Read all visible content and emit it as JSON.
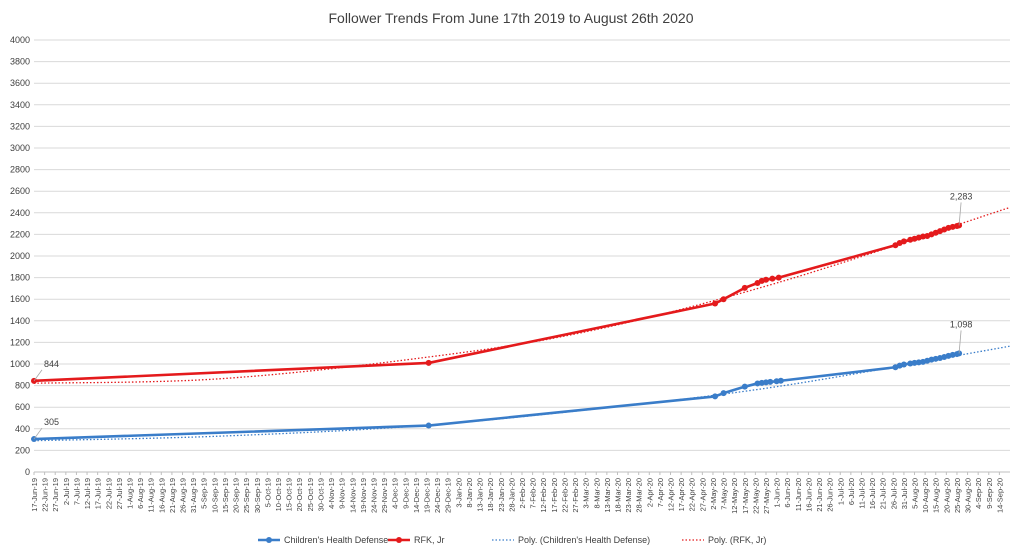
{
  "chart_data": {
    "type": "line",
    "title": "Follower Trends From June 17th 2019 to August 26th 2020",
    "xlabel": "",
    "ylabel": "",
    "ylim": [
      0,
      4000
    ],
    "yticks": [
      "0",
      "200",
      "400",
      "600",
      "800",
      "1000",
      "1200",
      "1400",
      "1600",
      "1800",
      "2000",
      "2200",
      "2400",
      "2600",
      "2800",
      "3000",
      "3200",
      "3400",
      "3600",
      "3800",
      "4000"
    ],
    "xlim": [
      "2019-06-17",
      "2020-09-19"
    ],
    "xticks": [
      "17-Jun-19",
      "22-Jun-19",
      "27-Jun-19",
      "2-Jul-19",
      "7-Jul-19",
      "12-Jul-19",
      "17-Jul-19",
      "22-Jul-19",
      "27-Jul-19",
      "1-Aug-19",
      "6-Aug-19",
      "11-Aug-19",
      "16-Aug-19",
      "21-Aug-19",
      "26-Aug-19",
      "31-Aug-19",
      "5-Sep-19",
      "10-Sep-19",
      "15-Sep-19",
      "20-Sep-19",
      "25-Sep-19",
      "30-Sep-19",
      "5-Oct-19",
      "10-Oct-19",
      "15-Oct-19",
      "20-Oct-19",
      "25-Oct-19",
      "30-Oct-19",
      "4-Nov-19",
      "9-Nov-19",
      "14-Nov-19",
      "19-Nov-19",
      "24-Nov-19",
      "29-Nov-19",
      "4-Dec-19",
      "9-Dec-19",
      "14-Dec-19",
      "19-Dec-19",
      "24-Dec-19",
      "29-Dec-19",
      "3-Jan-20",
      "8-Jan-20",
      "13-Jan-20",
      "18-Jan-20",
      "23-Jan-20",
      "28-Jan-20",
      "2-Feb-20",
      "7-Feb-20",
      "12-Feb-20",
      "17-Feb-20",
      "22-Feb-20",
      "27-Feb-20",
      "3-Mar-20",
      "8-Mar-20",
      "13-Mar-20",
      "18-Mar-20",
      "23-Mar-20",
      "28-Mar-20",
      "2-Apr-20",
      "7-Apr-20",
      "12-Apr-20",
      "17-Apr-20",
      "22-Apr-20",
      "27-Apr-20",
      "2-May-20",
      "7-May-20",
      "12-May-20",
      "17-May-20",
      "22-May-20",
      "27-May-20",
      "1-Jun-20",
      "6-Jun-20",
      "11-Jun-20",
      "16-Jun-20",
      "21-Jun-20",
      "26-Jun-20",
      "1-Jul-20",
      "6-Jul-20",
      "11-Jul-20",
      "16-Jul-20",
      "21-Jul-20",
      "26-Jul-20",
      "31-Jul-20",
      "5-Aug-20",
      "10-Aug-20",
      "15-Aug-20",
      "20-Aug-20",
      "25-Aug-20",
      "30-Aug-20",
      "4-Sep-20",
      "9-Sep-20",
      "14-Sep-20"
    ],
    "grid": true,
    "legend": "bottom",
    "series": [
      {
        "name": "Children's Health Defense",
        "color": "#3a7dc9",
        "points": [
          [
            "2019-06-17",
            305
          ],
          [
            "2019-12-20",
            430
          ],
          [
            "2020-05-03",
            700
          ],
          [
            "2020-05-07",
            730
          ],
          [
            "2020-05-17",
            790
          ],
          [
            "2020-05-23",
            820
          ],
          [
            "2020-05-25",
            825
          ],
          [
            "2020-05-27",
            830
          ],
          [
            "2020-05-29",
            835
          ],
          [
            "2020-06-01",
            840
          ],
          [
            "2020-06-03",
            845
          ],
          [
            "2020-07-27",
            970
          ],
          [
            "2020-07-29",
            985
          ],
          [
            "2020-07-31",
            995
          ],
          [
            "2020-08-03",
            1005
          ],
          [
            "2020-08-05",
            1010
          ],
          [
            "2020-08-07",
            1015
          ],
          [
            "2020-08-09",
            1020
          ],
          [
            "2020-08-11",
            1030
          ],
          [
            "2020-08-13",
            1040
          ],
          [
            "2020-08-15",
            1048
          ],
          [
            "2020-08-17",
            1055
          ],
          [
            "2020-08-19",
            1065
          ],
          [
            "2020-08-21",
            1075
          ],
          [
            "2020-08-23",
            1085
          ],
          [
            "2020-08-25",
            1092
          ],
          [
            "2020-08-26",
            1098
          ]
        ]
      },
      {
        "name": "RFK, Jr",
        "color": "#e41a1c",
        "points": [
          [
            "2019-06-17",
            844
          ],
          [
            "2019-12-20",
            1010
          ],
          [
            "2020-05-03",
            1560
          ],
          [
            "2020-05-07",
            1600
          ],
          [
            "2020-05-17",
            1705
          ],
          [
            "2020-05-23",
            1750
          ],
          [
            "2020-05-25",
            1770
          ],
          [
            "2020-05-27",
            1780
          ],
          [
            "2020-05-30",
            1790
          ],
          [
            "2020-06-02",
            1800
          ],
          [
            "2020-07-27",
            2100
          ],
          [
            "2020-07-29",
            2120
          ],
          [
            "2020-07-31",
            2135
          ],
          [
            "2020-08-03",
            2150
          ],
          [
            "2020-08-05",
            2160
          ],
          [
            "2020-08-07",
            2170
          ],
          [
            "2020-08-09",
            2180
          ],
          [
            "2020-08-11",
            2185
          ],
          [
            "2020-08-13",
            2200
          ],
          [
            "2020-08-15",
            2215
          ],
          [
            "2020-08-17",
            2230
          ],
          [
            "2020-08-19",
            2245
          ],
          [
            "2020-08-21",
            2260
          ],
          [
            "2020-08-23",
            2270
          ],
          [
            "2020-08-25",
            2278
          ],
          [
            "2020-08-26",
            2283
          ]
        ]
      }
    ],
    "trendlines": [
      {
        "name": "Poly. (Children's Health Defense)",
        "color": "#3a7dc9",
        "style": "dotted",
        "points": [
          [
            "2019-06-17",
            290
          ],
          [
            "2019-09-10",
            330
          ],
          [
            "2019-12-10",
            420
          ],
          [
            "2020-03-01",
            570
          ],
          [
            "2020-06-01",
            790
          ],
          [
            "2020-09-19",
            1165
          ]
        ]
      },
      {
        "name": "Poly. (RFK, Jr)",
        "color": "#e41a1c",
        "style": "dotted",
        "points": [
          [
            "2019-06-17",
            822
          ],
          [
            "2019-09-10",
            860
          ],
          [
            "2019-12-10",
            1040
          ],
          [
            "2020-03-01",
            1290
          ],
          [
            "2020-06-01",
            1750
          ],
          [
            "2020-09-19",
            2450
          ]
        ]
      }
    ],
    "annotations": [
      {
        "text": "844",
        "series": "RFK, Jr",
        "x": "2019-06-17",
        "y": 844
      },
      {
        "text": "305",
        "series": "Children's Health Defense",
        "x": "2019-06-17",
        "y": 305
      },
      {
        "text": "2,283",
        "series": "RFK, Jr",
        "x": "2020-08-26",
        "y": 2283
      },
      {
        "text": "1,098",
        "series": "Children's Health Defense",
        "x": "2020-08-26",
        "y": 1098
      }
    ]
  }
}
